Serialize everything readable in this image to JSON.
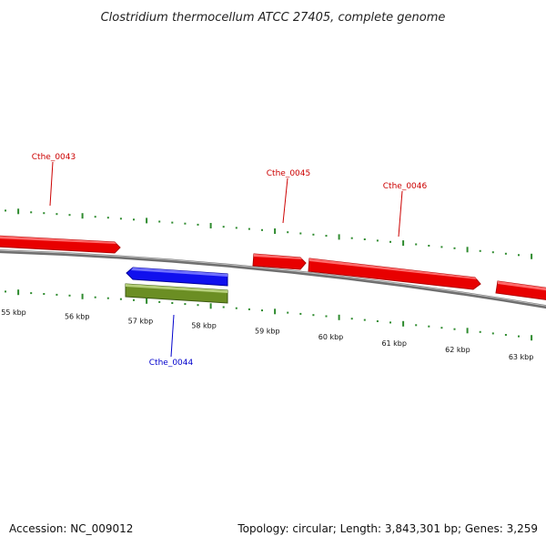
{
  "header": {
    "title": "Clostridium thermocellum ATCC 27405, complete genome"
  },
  "footer": {
    "accession": "Accession: NC_009012",
    "summary": "Topology: circular; Length: 3,843,301 bp; Genes: 3,259"
  },
  "colors": {
    "backbone": "#808080",
    "forward_gene": "#ff0000",
    "reverse_gene": "#0000ff",
    "cds_feature": "#6b8e23",
    "ticks": "#2e8b2e",
    "forward_label": "#cc0000",
    "reverse_label": "#0000cc"
  },
  "scale": {
    "unit": "kbp",
    "labels": [
      "55 kbp",
      "56 kbp",
      "57 kbp",
      "58 kbp",
      "59 kbp",
      "60 kbp",
      "61 kbp",
      "62 kbp",
      "63 kbp"
    ]
  },
  "genes": [
    {
      "name": "Cthe_0043",
      "strand": "forward",
      "labeled": true
    },
    {
      "name": "Cthe_0044",
      "strand": "reverse",
      "labeled": true
    },
    {
      "name": "Cthe_0045",
      "strand": "forward",
      "labeled": true
    },
    {
      "name": "Cthe_0046",
      "strand": "forward",
      "labeled": true
    },
    {
      "name": "",
      "strand": "forward",
      "labeled": false
    }
  ]
}
